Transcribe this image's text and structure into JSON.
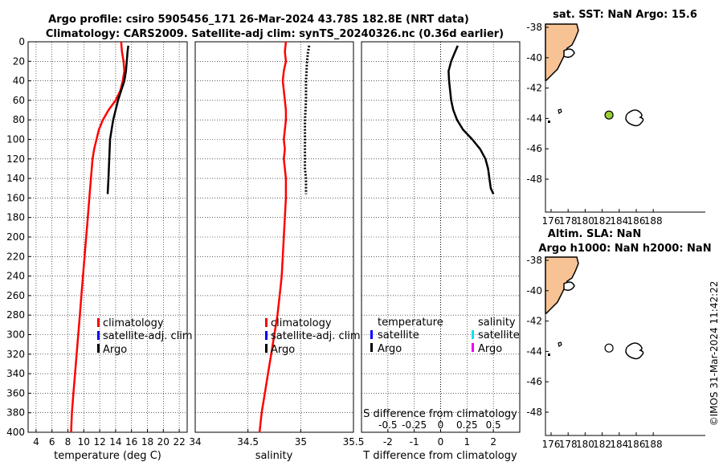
{
  "header": {
    "line1": "Argo profile: csiro 5905456_171 26-Mar-2024 43.78S 182.8E (NRT data)",
    "line2": "Climatology: CARS2009. Satellite-adj clim: synTS_20240326.nc (0.36d earlier)"
  },
  "credit": "©IMOS 31-Mar-2024 11:42:22",
  "chart_data": [
    {
      "type": "line",
      "id": "temperature",
      "xlabel": "temperature (deg C)",
      "ylabel": "",
      "xlim": [
        3,
        23
      ],
      "ylim": [
        400,
        0
      ],
      "xticks": [
        4,
        6,
        8,
        10,
        12,
        14,
        16,
        18,
        20,
        22
      ],
      "xtick_labels": [
        "4",
        "6",
        "8",
        "10",
        "12",
        "14",
        "16",
        "18",
        "20",
        "22"
      ],
      "yticks": [
        0,
        20,
        40,
        60,
        80,
        100,
        120,
        140,
        160,
        180,
        200,
        220,
        240,
        260,
        280,
        300,
        320,
        340,
        360,
        380,
        400
      ],
      "ytick_labels": [
        "0",
        "20",
        "40",
        "60",
        "80",
        "100",
        "120",
        "140",
        "160",
        "180",
        "200",
        "220",
        "240",
        "260",
        "280",
        "300",
        "320",
        "340",
        "360",
        "380",
        "400"
      ],
      "legend": [
        "climatology",
        "satellite-adj. clim",
        "Argo"
      ],
      "series": [
        {
          "name": "climatology",
          "color": "#ff0000",
          "style": "solid",
          "x": [
            14.7,
            14.8,
            15.0,
            15.1,
            14.9,
            14.6,
            14.0,
            13.1,
            12.4,
            11.9,
            11.6,
            11.3,
            11.1,
            10.9,
            10.7,
            10.5,
            10.3,
            10.1,
            9.9,
            9.7,
            9.5,
            9.3,
            9.1,
            8.9,
            8.7,
            8.5,
            8.4
          ],
          "y": [
            0,
            10,
            20,
            30,
            40,
            50,
            60,
            70,
            80,
            90,
            100,
            110,
            120,
            140,
            160,
            180,
            200,
            220,
            240,
            260,
            280,
            300,
            320,
            340,
            360,
            380,
            400
          ]
        },
        {
          "name": "satellite-adj. clim",
          "color": "#0000ff",
          "style": "solid",
          "x": [],
          "y": []
        },
        {
          "name": "Argo",
          "color": "#000000",
          "style": "solid",
          "x": [
            15.6,
            15.5,
            15.4,
            15.3,
            15.1,
            14.7,
            14.3,
            14.0,
            13.7,
            13.5,
            13.3,
            13.2,
            13.1,
            13.0
          ],
          "y": [
            4,
            10,
            20,
            30,
            40,
            50,
            60,
            70,
            80,
            90,
            100,
            120,
            140,
            156
          ]
        }
      ]
    },
    {
      "type": "line",
      "id": "salinity",
      "xlabel": "salinity",
      "ylabel": "",
      "xlim": [
        34,
        35.5
      ],
      "ylim": [
        400,
        0
      ],
      "xticks": [
        34,
        34.5,
        35,
        35.5
      ],
      "xtick_labels": [
        "34",
        "34.5",
        "35",
        "35.5"
      ],
      "legend": [
        "climatology",
        "satellite-adj. clim",
        "Argo"
      ],
      "series": [
        {
          "name": "climatology",
          "color": "#ff0000",
          "style": "solid",
          "x": [
            34.86,
            34.85,
            34.86,
            34.84,
            34.83,
            34.84,
            34.85,
            34.86,
            34.86,
            34.85,
            34.84,
            34.85,
            34.84,
            34.86,
            34.86,
            34.85,
            34.84,
            34.83,
            34.82,
            34.8,
            34.78,
            34.75,
            34.72,
            34.69,
            34.66,
            34.63,
            34.61
          ],
          "y": [
            0,
            10,
            20,
            30,
            40,
            50,
            60,
            70,
            80,
            90,
            100,
            110,
            120,
            140,
            160,
            180,
            200,
            220,
            240,
            260,
            280,
            300,
            320,
            340,
            360,
            380,
            400
          ]
        },
        {
          "name": "satellite-adj. clim",
          "color": "#0000ff",
          "style": "solid",
          "x": [],
          "y": []
        },
        {
          "name": "Argo",
          "color": "#000000",
          "style": "dotted",
          "x": [
            35.08,
            35.07,
            35.06,
            35.05,
            35.05,
            35.04,
            35.04,
            35.04,
            35.04,
            35.04,
            35.05,
            35.05,
            35.05
          ],
          "y": [
            4,
            10,
            20,
            40,
            60,
            80,
            100,
            110,
            120,
            130,
            140,
            150,
            156
          ]
        }
      ]
    },
    {
      "type": "line",
      "id": "difference",
      "xlabel": "T difference from climatology",
      "x2label": "S difference from climatology",
      "xlim": [
        -3,
        3
      ],
      "ylim": [
        400,
        0
      ],
      "xticks": [
        -2,
        -1,
        0,
        1,
        2
      ],
      "xtick_labels": [
        "-2",
        "-1",
        "0",
        "1",
        "2"
      ],
      "x2ticks": [
        -0.5,
        -0.25,
        0,
        0.25,
        0.5
      ],
      "x2tick_labels": [
        "-0.5",
        "-0.25",
        "0",
        "0.25",
        "0.5"
      ],
      "legend_titles": [
        "temperature",
        "salinity"
      ],
      "legend": [
        "satellite",
        "Argo",
        "satellite",
        "Argo"
      ],
      "legend_colors": [
        "#0000ff",
        "#000000",
        "#00e5ee",
        "#ee00ee"
      ],
      "zero_line": 0,
      "series": [
        {
          "name": "T Argo",
          "color": "#000000",
          "style": "solid",
          "x": [
            0.65,
            0.55,
            0.4,
            0.3,
            0.32,
            0.36,
            0.4,
            0.48,
            0.62,
            0.85,
            1.2,
            1.5,
            1.7,
            1.8,
            1.85,
            1.9,
            2.0
          ],
          "y": [
            4,
            10,
            20,
            30,
            40,
            50,
            60,
            70,
            80,
            90,
            100,
            110,
            120,
            130,
            140,
            150,
            156
          ]
        }
      ]
    }
  ],
  "map_top": {
    "title": "sat. SST: NaN Argo: 15.6",
    "yticks": [
      -38,
      -40,
      -42,
      -44,
      -46,
      -48
    ],
    "ytick_labels": [
      "-38",
      "-40",
      "-42",
      "-44",
      "-46",
      "-48"
    ],
    "xticks": [
      176,
      178,
      180,
      182,
      184,
      186,
      188
    ],
    "xtick_labels": [
      "176",
      "178",
      "180",
      "182",
      "184",
      "186",
      "188"
    ],
    "land_color": "#f7c395",
    "marker_color": "#9acd32",
    "marker_lon": 182.8,
    "marker_lat": -43.78
  },
  "map_bottom": {
    "title1": "Altim. SLA: NaN",
    "title2": "Argo h1000: NaN h2000: NaN",
    "yticks": [
      -38,
      -40,
      -42,
      -44,
      -46,
      -48
    ],
    "ytick_labels": [
      "-38",
      "-40",
      "-42",
      "-44",
      "-46",
      "-48"
    ],
    "xticks": [
      176,
      178,
      180,
      182,
      184,
      186,
      188
    ],
    "xtick_labels": [
      "176",
      "178",
      "180",
      "182",
      "184",
      "186",
      "188"
    ],
    "land_color": "#f7c395",
    "marker_color": "#ffffff",
    "marker_lon": 182.8,
    "marker_lat": -43.78
  }
}
